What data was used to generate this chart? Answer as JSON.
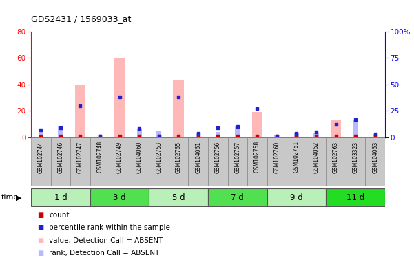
{
  "title": "GDS2431 / 1569033_at",
  "samples": [
    "GSM102744",
    "GSM102746",
    "GSM102747",
    "GSM102748",
    "GSM102749",
    "GSM104060",
    "GSM102753",
    "GSM102755",
    "GSM104051",
    "GSM102756",
    "GSM102757",
    "GSM102758",
    "GSM102760",
    "GSM102761",
    "GSM104052",
    "GSM102763",
    "GSM103323",
    "GSM104053"
  ],
  "groups": [
    {
      "label": "1 d",
      "indices": [
        0,
        1,
        2
      ],
      "color": "#b8f0b8"
    },
    {
      "label": "3 d",
      "indices": [
        3,
        4,
        5
      ],
      "color": "#50e050"
    },
    {
      "label": "5 d",
      "indices": [
        6,
        7,
        8
      ],
      "color": "#b8f0b8"
    },
    {
      "label": "7 d",
      "indices": [
        9,
        10,
        11
      ],
      "color": "#50e050"
    },
    {
      "label": "9 d",
      "indices": [
        12,
        13,
        14
      ],
      "color": "#b8f0b8"
    },
    {
      "label": "11 d",
      "indices": [
        15,
        16,
        17
      ],
      "color": "#22dd22"
    }
  ],
  "percentile_rank": [
    7,
    9,
    30,
    1,
    38,
    8,
    1,
    38,
    4,
    9,
    10,
    27,
    1,
    4,
    5,
    12,
    17,
    3
  ],
  "value_absent": [
    0,
    0,
    40,
    0,
    60,
    0,
    0,
    43,
    0,
    0,
    0,
    19,
    0,
    0,
    0,
    13,
    0,
    0
  ],
  "rank_absent": [
    6,
    10,
    0,
    0,
    0,
    8,
    6,
    0,
    4,
    5,
    10,
    0,
    2,
    4,
    4,
    0,
    17,
    3
  ],
  "count_red": [
    1,
    1,
    1,
    1,
    1,
    1,
    1,
    1,
    1,
    1,
    1,
    1,
    1,
    1,
    1,
    1,
    1,
    1
  ],
  "left_ylim": [
    0,
    80
  ],
  "right_ylim": [
    0,
    100
  ],
  "left_yticks": [
    0,
    20,
    40,
    60,
    80
  ],
  "right_yticks": [
    0,
    25,
    50,
    75,
    100
  ],
  "right_yticklabels": [
    "0",
    "25",
    "50",
    "75",
    "100%"
  ],
  "bg_color": "#ffffff",
  "plot_bg": "#ffffff",
  "count_color": "#cc0000",
  "percentile_color": "#2222cc",
  "value_absent_color": "#ffb8b8",
  "rank_absent_color": "#b8b8ff",
  "label_bg_color": "#c8c8c8"
}
